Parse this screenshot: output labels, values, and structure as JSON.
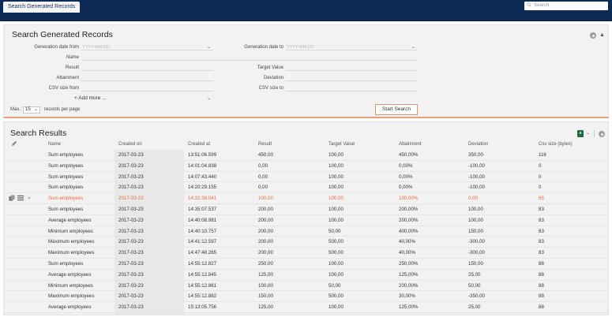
{
  "tab": {
    "label": "Search Generated Records"
  },
  "top_search": {
    "placeholder": "Search"
  },
  "search_panel": {
    "title": "Search Generated Records",
    "fields": {
      "gen_from_label": "Generation date from",
      "gen_from_placeholder": "YYYY-MM-DD",
      "gen_to_label": "Generation date to",
      "gen_to_placeholder": "YYYY-MM-DD",
      "name_label": "Name",
      "result_label": "Result",
      "target_label": "Target Value",
      "attainment_label": "Attainment",
      "deviation_label": "Deviation",
      "csv_from_label": "CSV size from",
      "csv_to_label": "CSV size to"
    },
    "add_more": "+ Add more ...",
    "max_label": "Max.",
    "max_value": "15",
    "records_label": "records per page",
    "start_button": "Start Search"
  },
  "results": {
    "title": "Search Results",
    "columns": [
      "Name",
      "Created on",
      "Created at",
      "Result",
      "Target Value",
      "Attainment",
      "Deviation",
      "Csv size (bytes)"
    ],
    "rows": [
      [
        "Sum employees",
        "2017-03-23",
        "13:51:06.599",
        "450,00",
        "100,00",
        "450,00%",
        "350,00",
        "116"
      ],
      [
        "Sum employees",
        "2017-03-23",
        "14:01:04.838",
        "0,00",
        "100,00",
        "0,00%",
        "-100,00",
        "0"
      ],
      [
        "Sum employees",
        "2017-03-23",
        "14:07:43.440",
        "0,00",
        "100,00",
        "0,00%",
        "-100,00",
        "0"
      ],
      [
        "Sum employees",
        "2017-03-23",
        "14:20:29.155",
        "0,00",
        "100,00",
        "0,00%",
        "-100,00",
        "0"
      ],
      [
        "Sum employees",
        "2017-03-23",
        "14:32:38.041",
        "100,00",
        "100,00",
        "100,00%",
        "0,00",
        "65"
      ],
      [
        "Sum employees",
        "2017-03-23",
        "14:35:07.537",
        "200,00",
        "100,00",
        "200,00%",
        "100,00",
        "83"
      ],
      [
        "Average employees",
        "2017-03-23",
        "14:40:08.981",
        "200,00",
        "100,00",
        "200,00%",
        "100,00",
        "83"
      ],
      [
        "Minimum employees",
        "2017-03-23",
        "14:40:10.757",
        "200,00",
        "50,00",
        "400,00%",
        "150,00",
        "83"
      ],
      [
        "Maximum employees",
        "2017-03-23",
        "14:41:12.597",
        "200,00",
        "500,00",
        "40,00%",
        "-300,00",
        "83"
      ],
      [
        "Maximum employees",
        "2017-03-23",
        "14:47:48.265",
        "200,00",
        "500,00",
        "40,00%",
        "-300,00",
        "83"
      ],
      [
        "Sum employees",
        "2017-03-23",
        "14:55:12.827",
        "250,00",
        "100,00",
        "250,00%",
        "150,00",
        "88"
      ],
      [
        "Average employees",
        "2017-03-23",
        "14:55:12.845",
        "125,00",
        "100,00",
        "125,00%",
        "25,00",
        "88"
      ],
      [
        "Minimum employees",
        "2017-03-23",
        "14:55:12.861",
        "100,00",
        "50,00",
        "200,00%",
        "50,00",
        "88"
      ],
      [
        "Maximum employees",
        "2017-03-23",
        "14:55:12.882",
        "150,00",
        "500,00",
        "30,00%",
        "-350,00",
        "88"
      ],
      [
        "Average employees",
        "2017-03-23",
        "15:13:05.756",
        "125,00",
        "100,00",
        "125,00%",
        "25,00",
        "88"
      ]
    ],
    "selected_row": 4
  },
  "colors": {
    "topbar": "#0d2a57",
    "accent": "#e3946c",
    "selected_text": "#ea6a3a"
  }
}
